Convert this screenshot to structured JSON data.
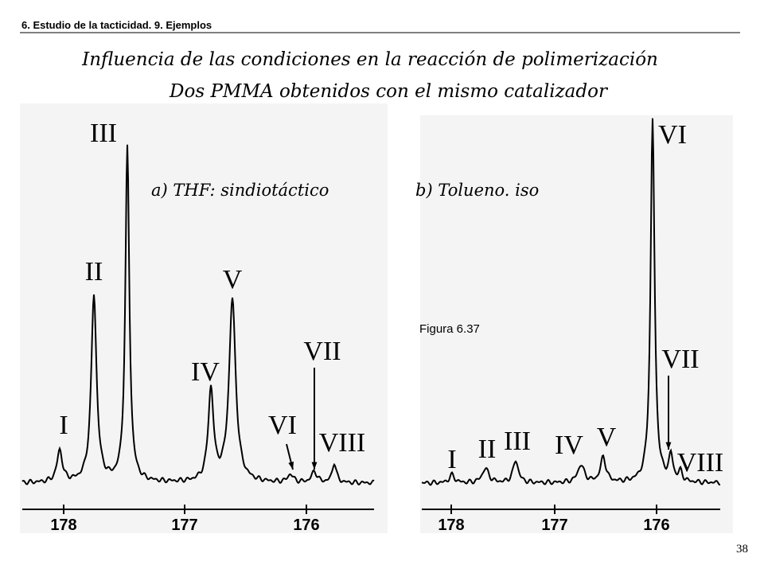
{
  "header": {
    "section": "6. Estudio de la tacticidad. 9. Ejemplos"
  },
  "title": "Influencia de las condiciones en la reacción de polimerización",
  "subtitle": "Dos PMMA obtenidos con el mismo catalizador",
  "figures": [
    {
      "label": "a) THF: sindiotáctico",
      "peaks": [
        "I",
        "II",
        "III",
        "IV",
        "V",
        "VI",
        "VII",
        "VIII"
      ],
      "axis_labels": [
        "178",
        "177",
        "176"
      ]
    },
    {
      "label": "b) Tolueno. iso",
      "peaks": [
        "I",
        "II",
        "III",
        "IV",
        "V",
        "VI",
        "VII",
        "VIII"
      ],
      "axis_labels": [
        "178",
        "177",
        "176"
      ]
    }
  ],
  "caption": "Figura 6.37",
  "page_number": "38"
}
